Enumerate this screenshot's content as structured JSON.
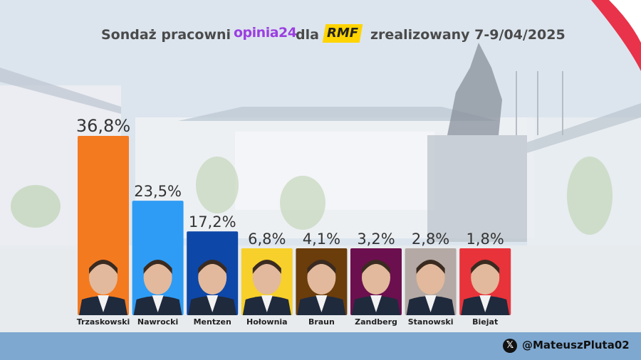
{
  "header": {
    "prefix": "Sondaż pracowni",
    "brand_pollster": "opinia24",
    "connector": "dla",
    "brand_media": "RMF",
    "suffix": "zrealizowany 7-9/04/2025"
  },
  "footer": {
    "icon": "x-logo-icon",
    "handle": "@MateuszPluta02"
  },
  "colors": {
    "header_text": "#4a4a4a",
    "pollster_brand": "#9b3fe0",
    "media_brand": "#ffd400",
    "footer_bar": "#7ea8d0"
  },
  "chart_data": {
    "type": "bar",
    "title": "",
    "xlabel": "",
    "ylabel": "",
    "ylim": [
      0,
      36.8
    ],
    "categories": [
      "Trzaskowski",
      "Nawrocki",
      "Mentzen",
      "Hołownia",
      "Braun",
      "Zandberg",
      "Stanowski",
      "Biejat"
    ],
    "values": [
      36.8,
      23.5,
      17.2,
      6.8,
      4.1,
      3.2,
      2.8,
      1.8
    ],
    "data_labels": [
      "36,8%",
      "23,5%",
      "17,2%",
      "6,8%",
      "4,1%",
      "3,2%",
      "2,8%",
      "1,8%"
    ],
    "colors": [
      "#f47a20",
      "#2e9cf4",
      "#0d47a8",
      "#f7d02b",
      "#6b3d0b",
      "#6c0f4e",
      "#b4a9a4",
      "#e8333a"
    ],
    "photo_band_colors": [
      "#f47a20",
      "#2e9cf4",
      "#0d47a8",
      "#f7d02b",
      "#6b3d0b",
      "#6c0f4e",
      "#b4a9a4",
      "#e8333a"
    ],
    "grid": false,
    "legend": "none"
  }
}
